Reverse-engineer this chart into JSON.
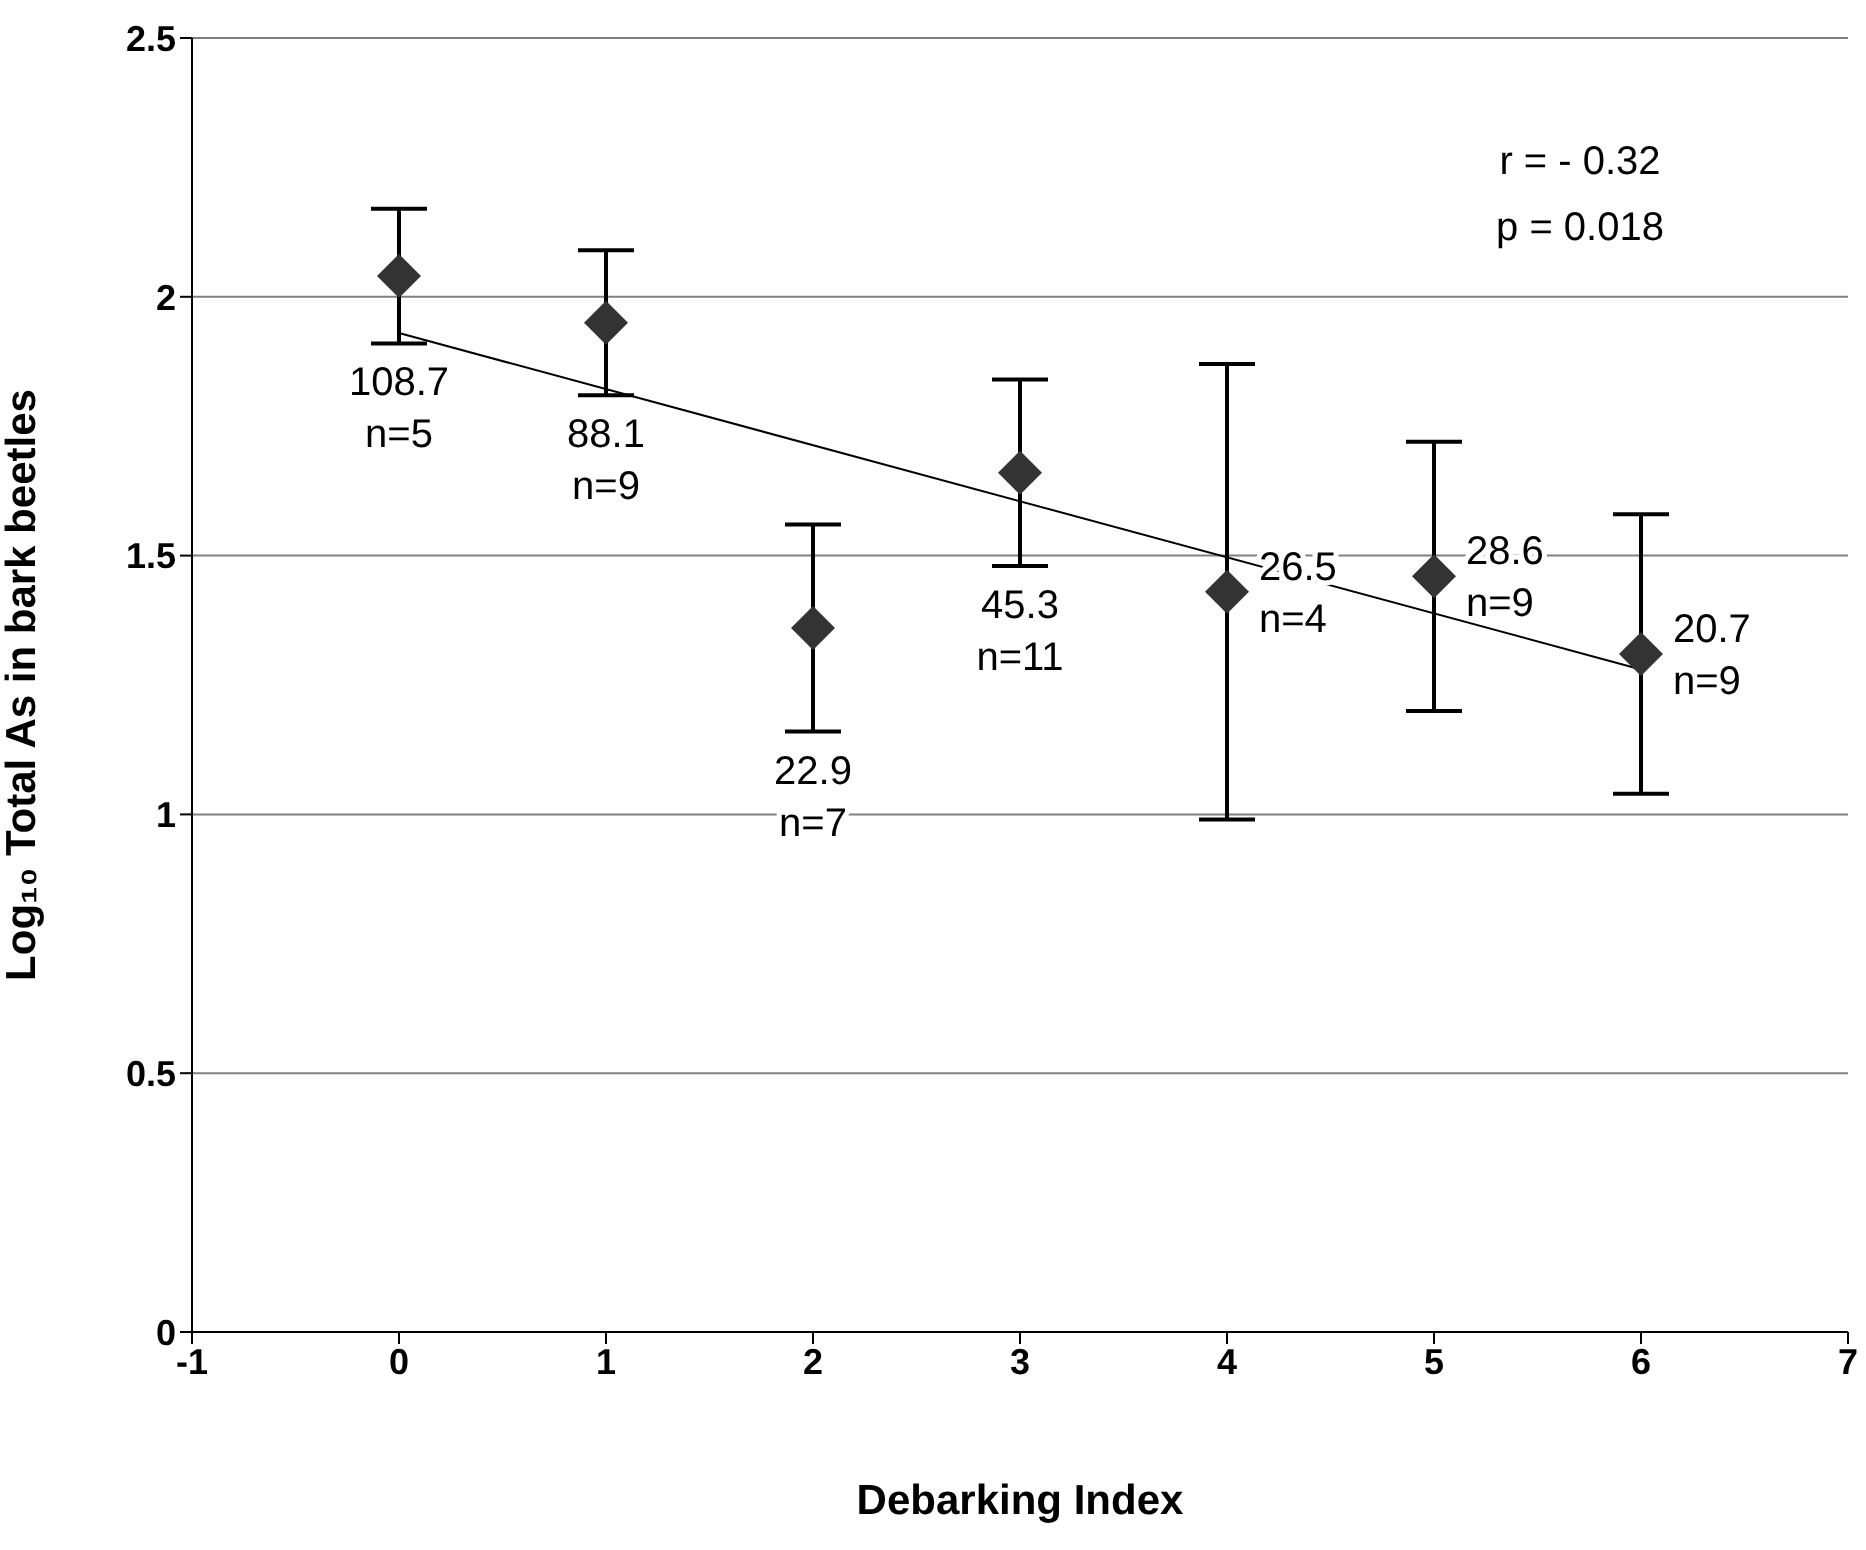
{
  "chart_data": {
    "type": "scatter",
    "xlabel": "Debarking Index",
    "ylabel": "Log₁₀ Total As in bark beetles",
    "xlim": [
      -1,
      7
    ],
    "xticks": [
      -1,
      0,
      1,
      2,
      3,
      4,
      5,
      6,
      7
    ],
    "ylim": [
      0,
      2.5
    ],
    "yticks": [
      0,
      0.5,
      1,
      1.5,
      2,
      2.5
    ],
    "grid": "y",
    "legend": false,
    "marker": "diamond",
    "series": [
      {
        "color": "#333333",
        "x": [
          0,
          1,
          2,
          3,
          4,
          5,
          6
        ],
        "values": [
          2.04,
          1.95,
          1.36,
          1.66,
          1.43,
          1.46,
          1.31
        ],
        "errors": [
          0.13,
          0.14,
          0.2,
          0.18,
          0.44,
          0.26,
          0.27
        ],
        "value_labels": [
          "108.7\nn=5",
          "88.1\nn=9",
          "22.9\nn=7",
          "45.3\nn=11",
          "26.5\nn=4",
          "28.6\nn=9",
          "20.7\nn=9"
        ]
      },
      {
        "type": "line",
        "color": "#000000",
        "x": [
          0,
          6
        ],
        "values": [
          1.93,
          1.28
        ],
        "marker": "none"
      }
    ],
    "annotations": [
      "r = - 0.32",
      "p = 0.018"
    ]
  }
}
